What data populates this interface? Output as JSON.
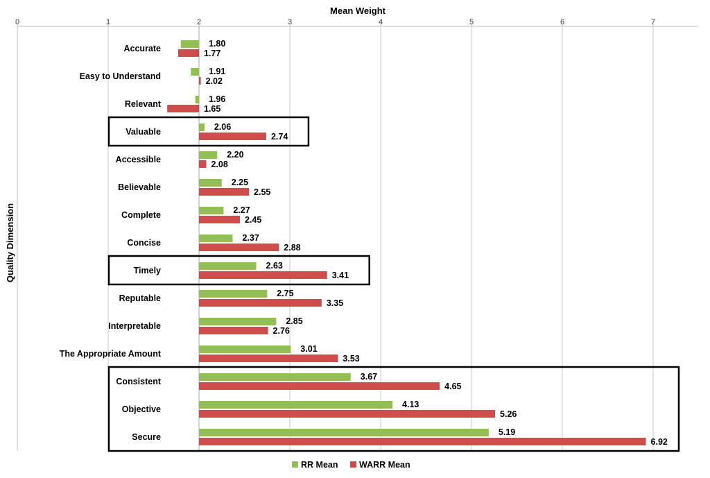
{
  "chart_data": {
    "type": "bar",
    "orientation": "horizontal",
    "xlabel": "Mean Weight",
    "ylabel": "Quality Dimension",
    "xlim": [
      0,
      7.5
    ],
    "x_ticks": [
      "0",
      "1",
      "2",
      "3",
      "4",
      "5",
      "6",
      "7"
    ],
    "grid": true,
    "legend_position": "bottom",
    "colors": {
      "rr": "#92c050",
      "warr": "#cf4c4c"
    },
    "categories": [
      "Accurate",
      "Easy to Understand",
      "Relevant",
      "Valuable",
      "Accessible",
      "Believable",
      "Complete",
      "Concise",
      "Timely",
      "Reputable",
      "Interpretable",
      "The Appropriate Amount",
      "Consistent",
      "Objective",
      "Secure"
    ],
    "series": [
      {
        "name": "RR Mean",
        "values": [
          1.8,
          1.91,
          1.96,
          2.06,
          2.2,
          2.25,
          2.27,
          2.37,
          2.63,
          2.75,
          2.85,
          3.01,
          3.67,
          4.13,
          5.19
        ]
      },
      {
        "name": "WARR Mean",
        "values": [
          1.77,
          2.02,
          1.65,
          2.74,
          2.08,
          2.55,
          2.45,
          2.88,
          3.41,
          3.35,
          2.76,
          3.53,
          4.65,
          5.26,
          6.92
        ]
      }
    ],
    "data_labels": {
      "rr": [
        "1.80",
        "1.91",
        "1.96",
        "2.06",
        "2.20",
        "2.25",
        "2.27",
        "2.37",
        "2.63",
        "2.75",
        "2.85",
        "3.01",
        "3.67",
        "4.13",
        "5.19"
      ],
      "warr": [
        "1.77",
        "2.02",
        "1.65",
        "2.74",
        "2.08",
        "2.55",
        "2.45",
        "2.88",
        "3.41",
        "3.35",
        "2.76",
        "3.53",
        "4.65",
        "5.26",
        "6.92"
      ]
    },
    "highlight_groups": [
      [
        "Valuable"
      ],
      [
        "Timely"
      ],
      [
        "Consistent",
        "Objective",
        "Secure"
      ]
    ]
  }
}
